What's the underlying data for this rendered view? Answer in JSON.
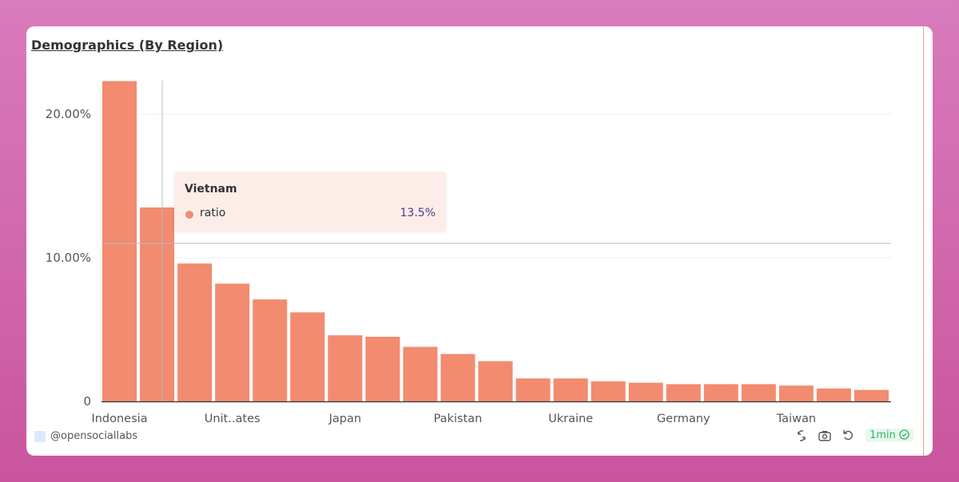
{
  "title": "Demographics (By Region)",
  "tooltip": {
    "category": "Vietnam",
    "series": "ratio",
    "value": "13.5%"
  },
  "footer": {
    "handle": "@opensociallabs",
    "refresh_badge": "1min",
    "icons": [
      "sync-icon",
      "camera-icon",
      "undo-icon",
      "check-circle-icon"
    ]
  },
  "colors": {
    "bar": "#f28b6f",
    "badge": "#2fb865"
  },
  "chart_data": {
    "type": "bar",
    "categories": [
      "Indonesia",
      "Vietnam",
      "",
      "Unit..ates",
      "",
      "",
      "Japan",
      "",
      "",
      "Pakistan",
      "",
      "",
      "Ukraine",
      "",
      "",
      "Germany",
      "",
      "",
      "Taiwan",
      "",
      ""
    ],
    "series": [
      {
        "name": "ratio",
        "values": [
          22.3,
          13.5,
          9.6,
          8.2,
          7.1,
          6.2,
          4.6,
          4.5,
          3.8,
          3.3,
          2.8,
          1.6,
          1.6,
          1.4,
          1.3,
          1.2,
          1.2,
          1.2,
          1.1,
          0.9,
          0.8
        ]
      }
    ],
    "tick_labels_x": [
      "Indonesia",
      "Unit..ates",
      "Japan",
      "Pakistan",
      "Ukraine",
      "Germany",
      "Taiwan"
    ],
    "yticks": [
      {
        "value": 0,
        "label": "0"
      },
      {
        "value": 10,
        "label": "10.00%"
      },
      {
        "value": 20,
        "label": "20.00%"
      }
    ],
    "ylim": [
      0,
      22.3
    ],
    "grid": true,
    "legend": "none",
    "highlighted": "Vietnam"
  }
}
